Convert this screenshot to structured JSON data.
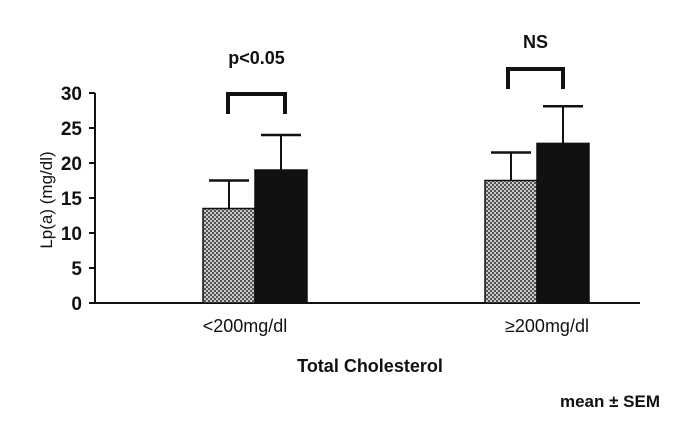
{
  "chart_data": {
    "type": "bar",
    "categories": [
      "<200mg/dl",
      "≥200mg/dl"
    ],
    "series": [
      {
        "values": [
          13.5,
          17.5
        ],
        "errors": [
          4.0,
          4.0
        ],
        "fill": "crosshatch-gray"
      },
      {
        "values": [
          19.0,
          22.8
        ],
        "errors": [
          5.0,
          5.3
        ],
        "fill": "#111111"
      }
    ],
    "ylabel": "Lp(a)  (mg/dl)",
    "xlabel": "Total Cholesterol",
    "ylim": [
      0,
      30
    ],
    "yticks": [
      0,
      5,
      10,
      15,
      20,
      25,
      30
    ],
    "grid": false,
    "annotations": [
      "p<0.05",
      "NS"
    ],
    "footnote": "mean ± SEM"
  }
}
